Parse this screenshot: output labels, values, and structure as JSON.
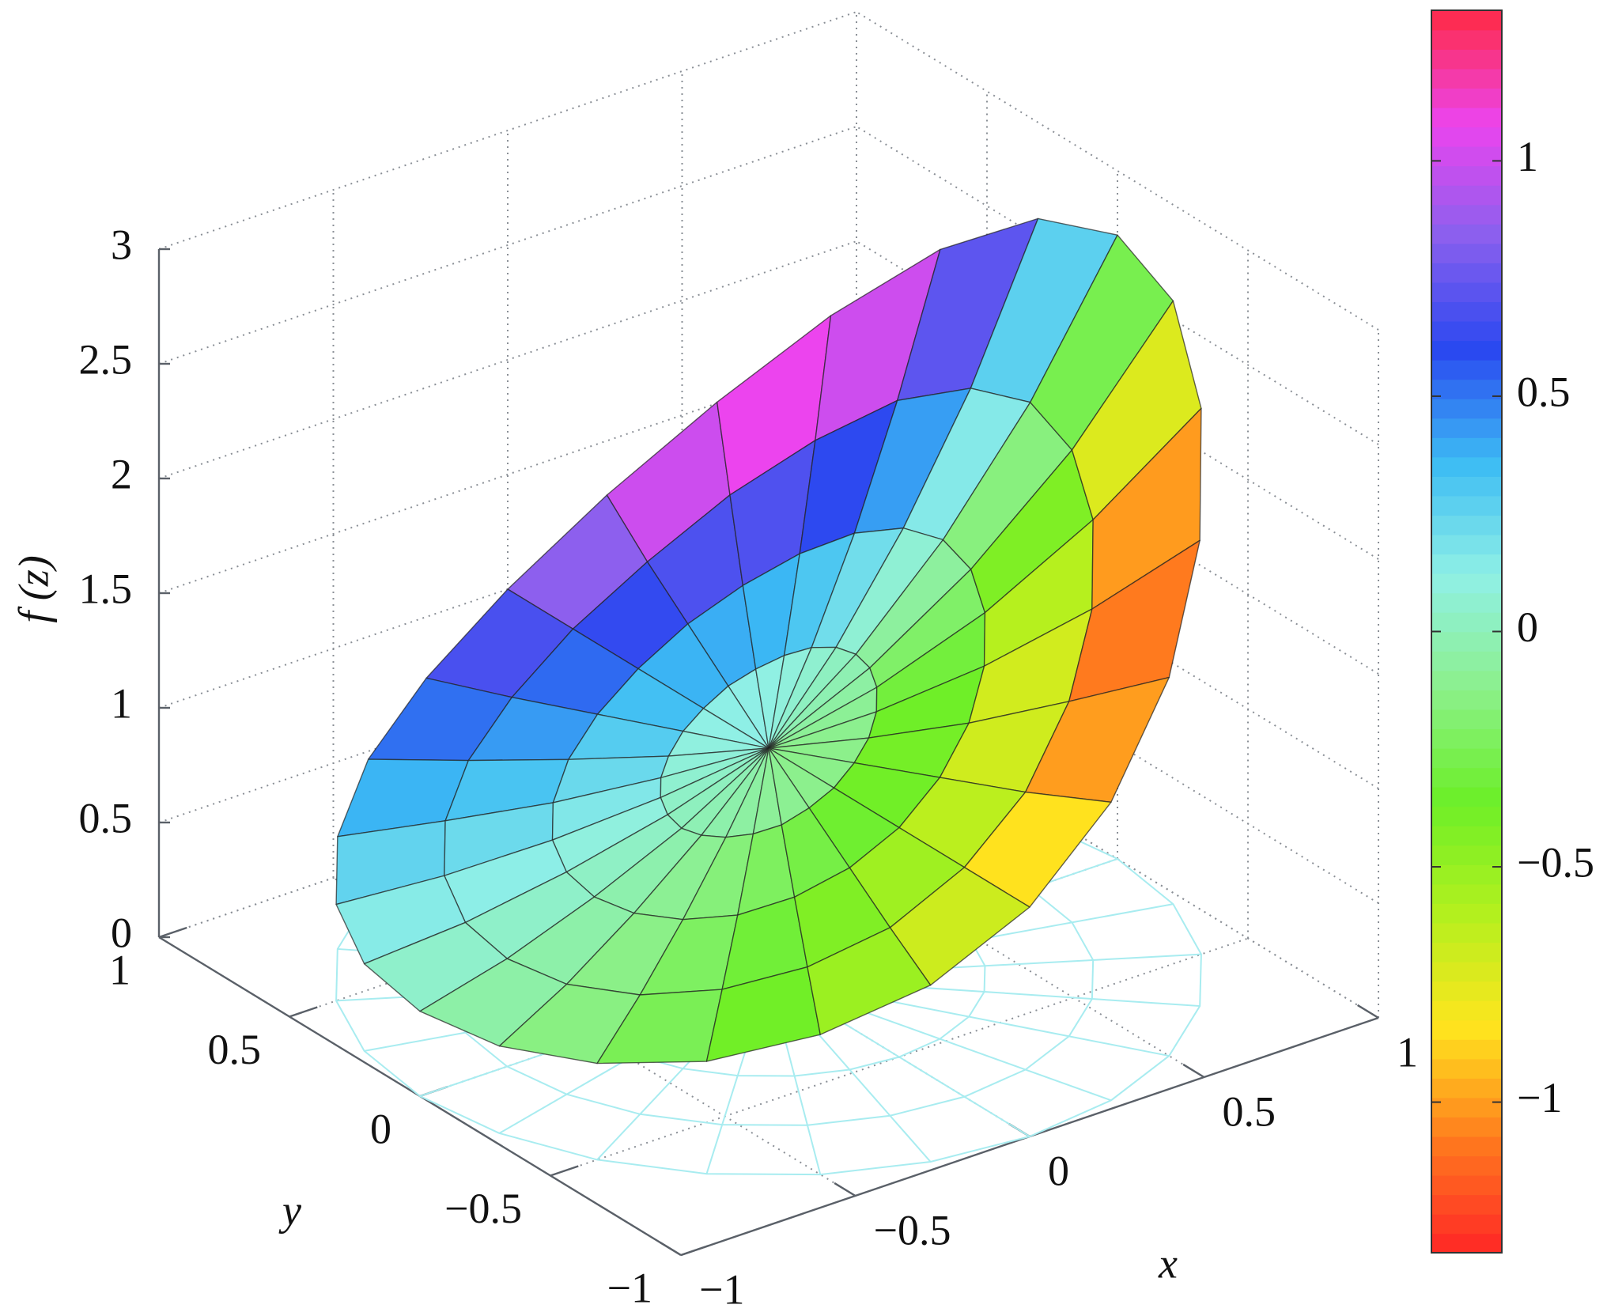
{
  "chart_data": {
    "type": "surface",
    "xlabel": "x",
    "ylabel": "y",
    "zlabel": "f (z)",
    "xlim": [
      -1,
      1
    ],
    "ylim": [
      -1,
      1
    ],
    "zlim": [
      0,
      3
    ],
    "clim": [
      -1.32,
      1.32
    ],
    "xticks": [
      {
        "value": -1,
        "label": "−1"
      },
      {
        "value": -0.5,
        "label": "−0.5"
      },
      0,
      0.5,
      1
    ],
    "yticks": [
      {
        "value": -1,
        "label": "−1"
      },
      {
        "value": -0.5,
        "label": "−0.5"
      },
      0,
      0.5,
      1
    ],
    "zticks": [
      0,
      0.5,
      1,
      1.5,
      2,
      2.5,
      3
    ],
    "cticks": [
      {
        "value": -1,
        "label": "−1"
      },
      {
        "value": -0.5,
        "label": "−0.5"
      },
      0,
      0.5,
      1
    ],
    "grid": true,
    "colormap": [
      "#ff2626",
      "#ff7a1e",
      "#ffe51e",
      "#b4f01e",
      "#6cef28",
      "#8cf08c",
      "#90f0e6",
      "#3cbcf4",
      "#2a48f0",
      "#8a60ee",
      "#ec44ee",
      "#ff2a44"
    ],
    "mesh_color": "#222222",
    "floor_mesh_color": "#a8ecf0",
    "surface": {
      "r": [
        0,
        0.25,
        0.5,
        0.75,
        1
      ],
      "theta": [
        0,
        15,
        30,
        45,
        60,
        75,
        90,
        105,
        120,
        135,
        150,
        165,
        180,
        195,
        210,
        225,
        240,
        255,
        270,
        285,
        300,
        315,
        330,
        345
      ],
      "z": [
        [
          1,
          1.28,
          1.65,
          2.12,
          2.72
        ],
        [
          1,
          1.27,
          1.62,
          2.06,
          2.63
        ],
        [
          1,
          1.24,
          1.54,
          1.92,
          2.38
        ],
        [
          1,
          1.19,
          1.42,
          1.7,
          2.03
        ],
        [
          1,
          1.13,
          1.28,
          1.46,
          1.65
        ],
        [
          1,
          1.07,
          1.14,
          1.21,
          1.3
        ],
        [
          1,
          1,
          1,
          1,
          1
        ],
        [
          1,
          0.94,
          0.88,
          0.82,
          0.77
        ],
        [
          1,
          0.88,
          0.78,
          0.69,
          0.61
        ],
        [
          1,
          0.84,
          0.7,
          0.59,
          0.49
        ],
        [
          1,
          0.81,
          0.65,
          0.52,
          0.42
        ],
        [
          1,
          0.79,
          0.62,
          0.48,
          0.38
        ],
        [
          1,
          0.78,
          0.61,
          0.47,
          0.37
        ],
        [
          1,
          0.79,
          0.62,
          0.48,
          0.38
        ],
        [
          1,
          0.81,
          0.65,
          0.52,
          0.42
        ],
        [
          1,
          0.84,
          0.7,
          0.59,
          0.49
        ],
        [
          1,
          0.88,
          0.78,
          0.69,
          0.61
        ],
        [
          1,
          0.94,
          0.88,
          0.82,
          0.77
        ],
        [
          1,
          1,
          1,
          1,
          1
        ],
        [
          1,
          1.07,
          1.14,
          1.21,
          1.3
        ],
        [
          1,
          1.13,
          1.28,
          1.46,
          1.65
        ],
        [
          1,
          1.19,
          1.42,
          1.7,
          2.03
        ],
        [
          1,
          1.24,
          1.54,
          1.92,
          2.38
        ],
        [
          1,
          1.27,
          1.62,
          2.06,
          2.63
        ]
      ],
      "c": [
        [
          0,
          0,
          0,
          0,
          0
        ],
        [
          0,
          0.08,
          0.21,
          0.4,
          0.67
        ],
        [
          0,
          0.16,
          0.38,
          0.7,
          1.14
        ],
        [
          0,
          0.21,
          0.49,
          0.86,
          1.32
        ],
        [
          0,
          0.24,
          0.54,
          0.88,
          1.26
        ],
        [
          0,
          0.25,
          0.53,
          0.8,
          1.07
        ],
        [
          0,
          0.25,
          0.48,
          0.68,
          0.84
        ],
        [
          0,
          0.22,
          0.41,
          0.55,
          0.64
        ],
        [
          0,
          0.19,
          0.33,
          0.42,
          0.46
        ],
        [
          0,
          0.15,
          0.24,
          0.3,
          0.32
        ],
        [
          0,
          0.1,
          0.16,
          0.19,
          0.2
        ],
        [
          0,
          0.05,
          0.08,
          0.09,
          0.1
        ],
        [
          0,
          0,
          0,
          0,
          0
        ],
        [
          0,
          -0.05,
          -0.08,
          -0.09,
          -0.1
        ],
        [
          0,
          -0.1,
          -0.16,
          -0.19,
          -0.2
        ],
        [
          0,
          -0.15,
          -0.24,
          -0.3,
          -0.32
        ],
        [
          0,
          -0.19,
          -0.33,
          -0.42,
          -0.46
        ],
        [
          0,
          -0.22,
          -0.41,
          -0.55,
          -0.64
        ],
        [
          0,
          -0.25,
          -0.48,
          -0.68,
          -0.84
        ],
        [
          0,
          -0.25,
          -0.53,
          -0.8,
          -1.07
        ],
        [
          0,
          -0.24,
          -0.54,
          -0.88,
          -1.26
        ],
        [
          0,
          -0.21,
          -0.49,
          -0.86,
          -1.32
        ],
        [
          0,
          -0.16,
          -0.38,
          -0.7,
          -1.14
        ],
        [
          0,
          -0.08,
          -0.21,
          -0.4,
          -0.67
        ]
      ]
    }
  }
}
